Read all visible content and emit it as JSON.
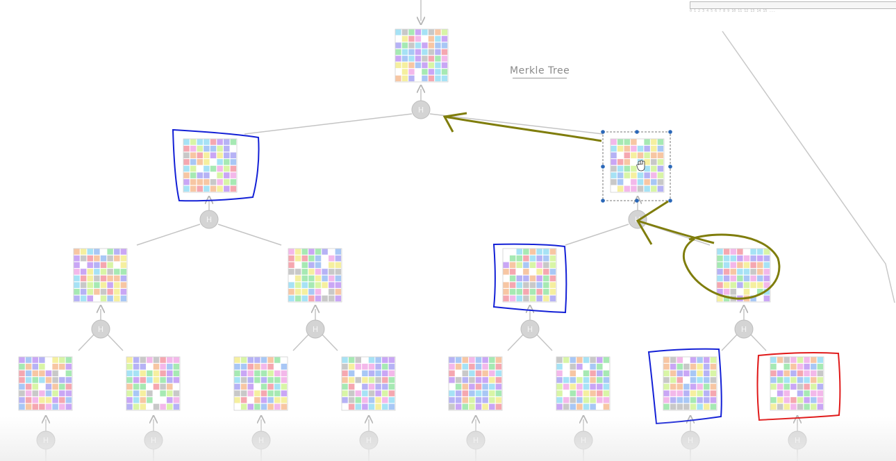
{
  "diagram": {
    "title": "Merkle Tree",
    "hash_label": "H",
    "ruler_ticks": "0 1 2 3 4 5 6 7 8 9 10 11 12 13 14 15 ...",
    "colors": {
      "cells": [
        "#f7c6a3",
        "#a6e9b3",
        "#c9a6f5",
        "#f5a7b0",
        "#f5ef9f",
        "#a6e2f5",
        "#c8c8c8",
        "#ffffff",
        "#b6b2f5",
        "#f3b8ea",
        "#d8f5a6",
        "#a8c7f5"
      ],
      "node_fill": "#d4d4d4",
      "edge": "#c4c4c4",
      "blue_annotation": "#1320d6",
      "olive_annotation": "#7f7d0c",
      "red_annotation": "#e01a1a",
      "selection_handle": "#2a67b8"
    }
  }
}
